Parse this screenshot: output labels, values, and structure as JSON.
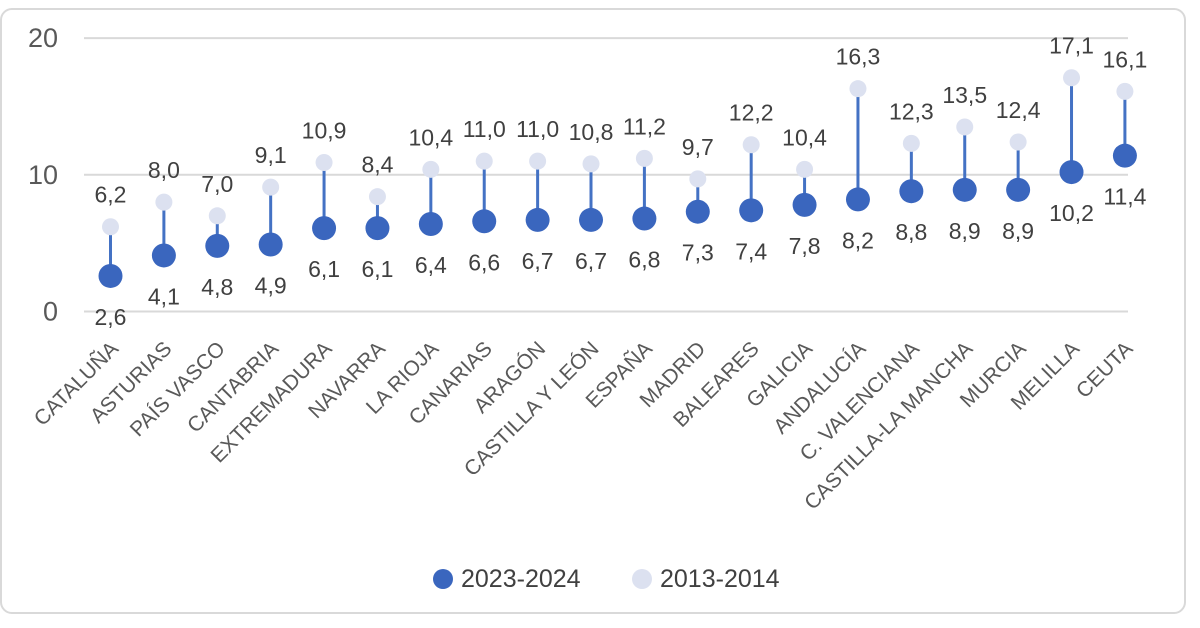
{
  "chart_data": {
    "type": "scatter",
    "variant": "dumbbell-lollipop",
    "title": "",
    "xlabel": "",
    "ylabel": "",
    "ylim": [
      0,
      20
    ],
    "grid": true,
    "legend_position": "bottom-center",
    "gridline_color": "#d9d9d9",
    "connector_color": "#4472c4",
    "value_label_color": "#404040",
    "axis_text_color": "#595959",
    "decimal_separator": ",",
    "yticks": [
      {
        "value": 0,
        "label": "0"
      },
      {
        "value": 10,
        "label": "10"
      },
      {
        "value": 20,
        "label": "20"
      }
    ],
    "categories": [
      "CATALUÑA",
      "ASTURIAS",
      "PAÍS VASCO",
      "CANTABRIA",
      "EXTREMADURA",
      "NAVARRA",
      "LA RIOJA",
      "CANARIAS",
      "ARAGÓN",
      "CASTILLA Y LEÓN",
      "ESPAÑA",
      "MADRID",
      "BALEARES",
      "GALICIA",
      "ANDALUCÍA",
      "C. VALENCIANA",
      "CASTILLA-LA MANCHA",
      "MURCIA",
      "MELILLA",
      "CEUTA"
    ],
    "series": [
      {
        "name": "2023-2024",
        "color": "#3a66be",
        "dot_radius": 12,
        "label_side": "below",
        "values": [
          2.6,
          4.1,
          4.8,
          4.9,
          6.1,
          6.1,
          6.4,
          6.6,
          6.7,
          6.7,
          6.8,
          7.3,
          7.4,
          7.8,
          8.2,
          8.8,
          8.9,
          8.9,
          10.2,
          11.4
        ],
        "labels": [
          "2,6",
          "4,1",
          "4,8",
          "4,9",
          "6,1",
          "6,1",
          "6,4",
          "6,6",
          "6,7",
          "6,7",
          "6,8",
          "7,3",
          "7,4",
          "7,8",
          "8,2",
          "8,8",
          "8,9",
          "8,9",
          "10,2",
          "11,4"
        ]
      },
      {
        "name": "2013-2014",
        "color": "#dce1f0",
        "dot_radius": 8.5,
        "label_side": "above",
        "values": [
          6.2,
          8.0,
          7.0,
          9.1,
          10.9,
          8.4,
          10.4,
          11.0,
          11.0,
          10.8,
          11.2,
          9.7,
          12.2,
          10.4,
          16.3,
          12.3,
          13.5,
          12.4,
          17.1,
          16.1
        ],
        "labels": [
          "6,2",
          "8,0",
          "7,0",
          "9,1",
          "10,9",
          "8,4",
          "10,4",
          "11,0",
          "11,0",
          "10,8",
          "11,2",
          "9,7",
          "12,2",
          "10,4",
          "16,3",
          "12,3",
          "13,5",
          "12,4",
          "17,1",
          "16,1"
        ]
      }
    ]
  }
}
